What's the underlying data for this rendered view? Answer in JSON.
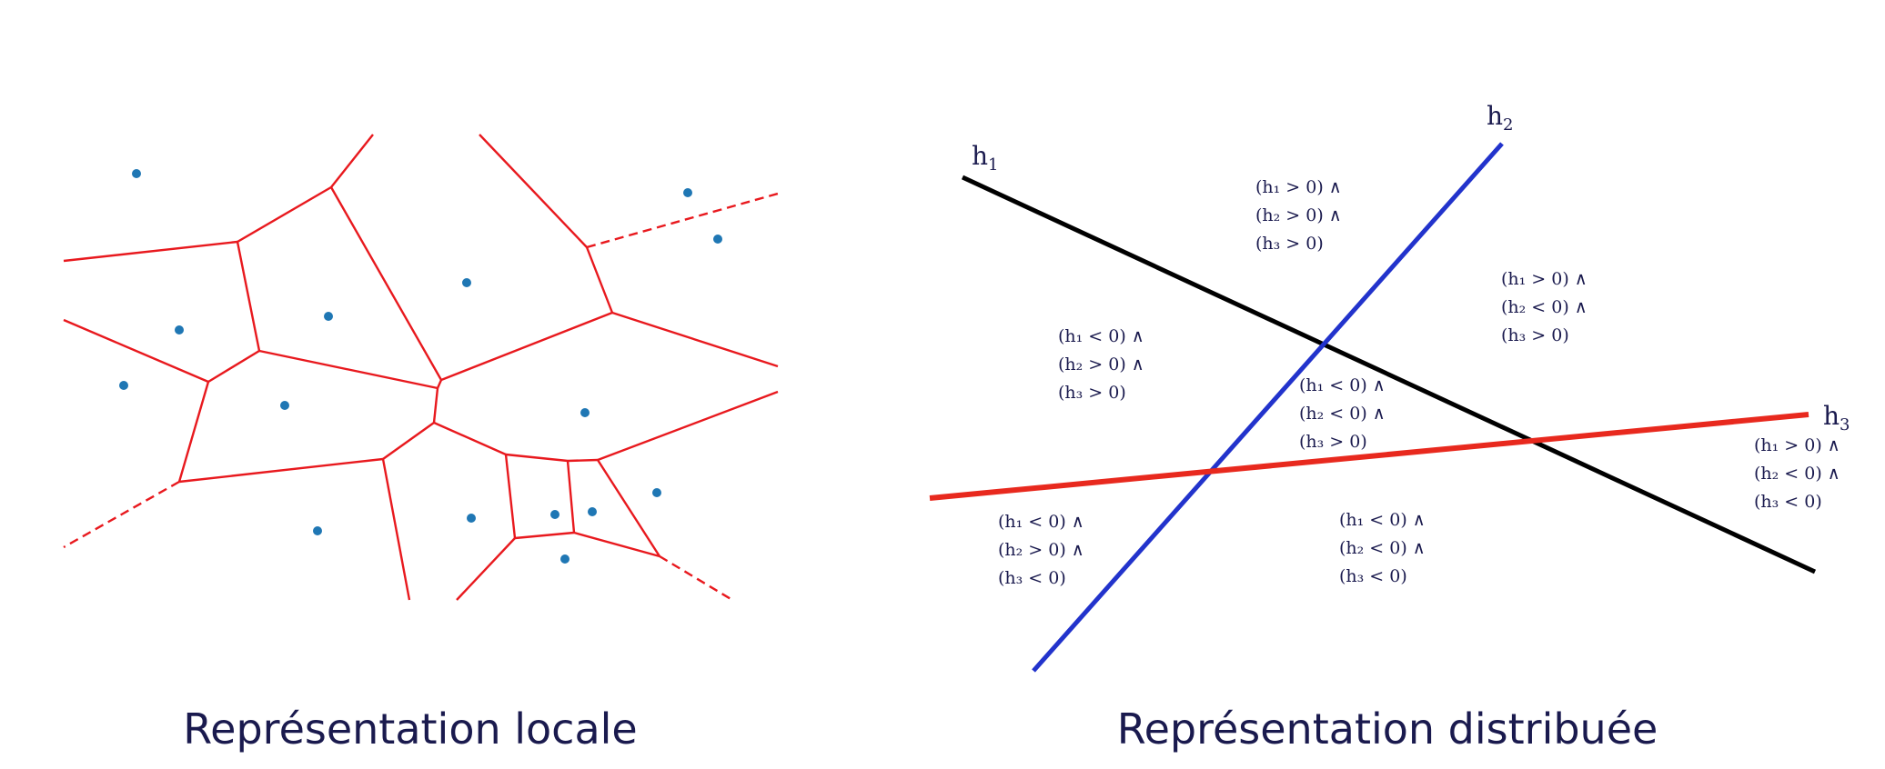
{
  "captions": {
    "left": "Représentation locale",
    "right": "Représentation distribuée"
  },
  "colors": {
    "voronoi_edge": "#e8191e",
    "point": "#1f77b4",
    "h1_line": "#000000",
    "h2_line": "#2233cc",
    "h3_line": "#e8291e",
    "text": "#1a1a4e"
  },
  "hyperplanes": [
    {
      "name": "h",
      "sub": "1"
    },
    {
      "name": "h",
      "sub": "2"
    },
    {
      "name": "h",
      "sub": "3"
    }
  ],
  "regions": [
    {
      "lines": [
        "(h₁ > 0) ∧",
        "(h₂ > 0) ∧",
        "(h₃ > 0)"
      ]
    },
    {
      "lines": [
        "(h₁ > 0) ∧",
        "(h₂ < 0) ∧",
        "(h₃ > 0)"
      ]
    },
    {
      "lines": [
        "(h₁ < 0) ∧",
        "(h₂ > 0) ∧",
        "(h₃ > 0)"
      ]
    },
    {
      "lines": [
        "(h₁ < 0) ∧",
        "(h₂ < 0) ∧",
        "(h₃ > 0)"
      ]
    },
    {
      "lines": [
        "(h₁ > 0) ∧",
        "(h₂ < 0) ∧",
        "(h₃ < 0)"
      ]
    },
    {
      "lines": [
        "(h₁ < 0) ∧",
        "(h₂ > 0) ∧",
        "(h₃ < 0)"
      ]
    },
    {
      "lines": [
        "(h₁ < 0) ∧",
        "(h₂ < 0) ∧",
        "(h₃ < 0)"
      ]
    }
  ]
}
